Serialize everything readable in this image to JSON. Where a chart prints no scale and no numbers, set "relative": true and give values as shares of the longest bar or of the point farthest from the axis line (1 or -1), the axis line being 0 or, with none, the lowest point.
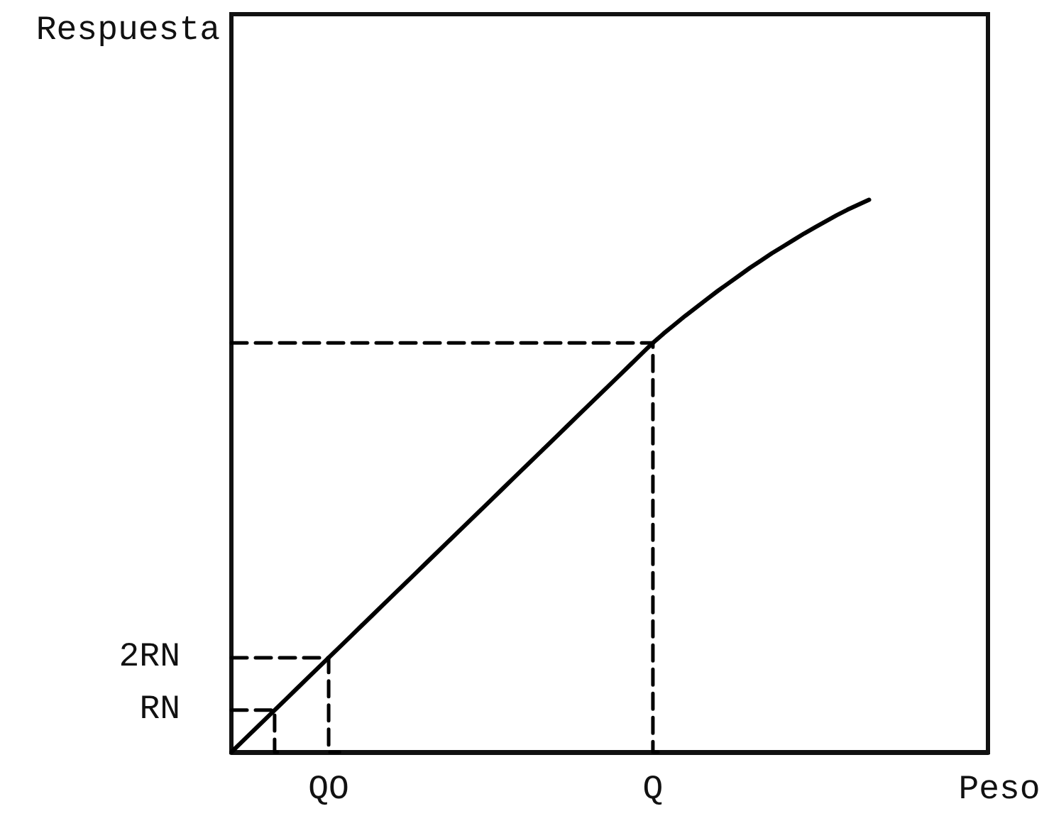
{
  "chart_data": {
    "type": "line",
    "relative": true,
    "xlabel": "Peso",
    "ylabel": "Respuesta",
    "categories": [
      null,
      null,
      null,
      null,
      null,
      null,
      null,
      null,
      null,
      "QO",
      null,
      null,
      null,
      null,
      null,
      null,
      null,
      null,
      null,
      null,
      null,
      null,
      null,
      null,
      null,
      null,
      null,
      null,
      null,
      null,
      null,
      null,
      null,
      null,
      null,
      null,
      null,
      null,
      null,
      "Q",
      null,
      null,
      null,
      null,
      null,
      null,
      null,
      null,
      null,
      null,
      null,
      null,
      null,
      null,
      null,
      null,
      null,
      null,
      null,
      null,
      null,
      null,
      null,
      null,
      null,
      null,
      null,
      null,
      null,
      null,
      null
    ],
    "grid": false,
    "marker": "none",
    "line_style": "solid",
    "series": [
      {
        "color": "#000000",
        "values": [
          0,
          0.019,
          0.038,
          0.057,
          0.076,
          0.095,
          0.114,
          0.133,
          0.152,
          0.171,
          0.19,
          0.209,
          0.228,
          0.247,
          0.266,
          0.285,
          0.304,
          0.323,
          0.342,
          0.361,
          0.38,
          0.399,
          0.418,
          0.437,
          0.456,
          0.475,
          0.494,
          0.513,
          0.532,
          0.551,
          0.57,
          0.589,
          0.608,
          0.627,
          0.646,
          0.665,
          0.684,
          0.703,
          0.722,
          0.741,
          0.758,
          0.774,
          0.79,
          0.805,
          0.82,
          0.835,
          0.849,
          0.863,
          0.877,
          0.89,
          0.903,
          0.915,
          0.927,
          0.939,
          0.95,
          0.961,
          0.972,
          0.982,
          0.991,
          1,
          null,
          null,
          null,
          null,
          null,
          null,
          null,
          null,
          null,
          null,
          null
        ]
      },
      {
        "type": "step",
        "name": "2RN",
        "color": "#000000",
        "line_style": "dashed",
        "values": [
          0.171,
          0.171,
          0.171,
          0.171,
          0.171,
          0.171,
          0.171,
          0.171,
          0.171,
          0.171,
          0,
          null,
          null,
          null,
          null,
          null,
          null,
          null,
          null,
          null,
          null,
          null,
          null,
          null,
          null,
          null,
          null,
          null,
          null,
          null,
          null,
          null,
          null,
          null,
          null,
          null,
          null,
          null,
          null,
          null,
          null,
          null,
          null,
          null,
          null,
          null,
          null,
          null,
          null,
          null,
          null,
          null,
          null,
          null,
          null,
          null,
          null,
          null,
          null,
          null,
          null,
          null,
          null,
          null,
          null,
          null,
          null,
          null,
          null,
          null,
          null
        ]
      },
      {
        "type": "step",
        "name": "RN",
        "color": "#000000",
        "line_style": "dashed",
        "values": [
          0.076,
          0.076,
          0.076,
          0.076,
          0.076,
          0,
          null,
          null,
          null,
          null,
          null,
          null,
          null,
          null,
          null,
          null,
          null,
          null,
          null,
          null,
          null,
          null,
          null,
          null,
          null,
          null,
          null,
          null,
          null,
          null,
          null,
          null,
          null,
          null,
          null,
          null,
          null,
          null,
          null,
          null,
          null,
          null,
          null,
          null,
          null,
          null,
          null,
          null,
          null,
          null,
          null,
          null,
          null,
          null,
          null,
          null,
          null,
          null,
          null,
          null,
          null,
          null,
          null,
          null,
          null,
          null,
          null,
          null,
          null,
          null,
          null
        ]
      },
      {
        "type": "step",
        "color": "#000000",
        "line_style": "dashed",
        "values": [
          0.741,
          0.741,
          0.741,
          0.741,
          0.741,
          0.741,
          0.741,
          0.741,
          0.741,
          0.741,
          0.741,
          0.741,
          0.741,
          0.741,
          0.741,
          0.741,
          0.741,
          0.741,
          0.741,
          0.741,
          0.741,
          0.741,
          0.741,
          0.741,
          0.741,
          0.741,
          0.741,
          0.741,
          0.741,
          0.741,
          0.741,
          0.741,
          0.741,
          0.741,
          0.741,
          0.741,
          0.741,
          0.741,
          0.741,
          0.741,
          0,
          null,
          null,
          null,
          null,
          null,
          null,
          null,
          null,
          null,
          null,
          null,
          null,
          null,
          null,
          null,
          null,
          null,
          null,
          null,
          null,
          null,
          null,
          null,
          null,
          null,
          null,
          null,
          null,
          null,
          null
        ]
      }
    ]
  }
}
